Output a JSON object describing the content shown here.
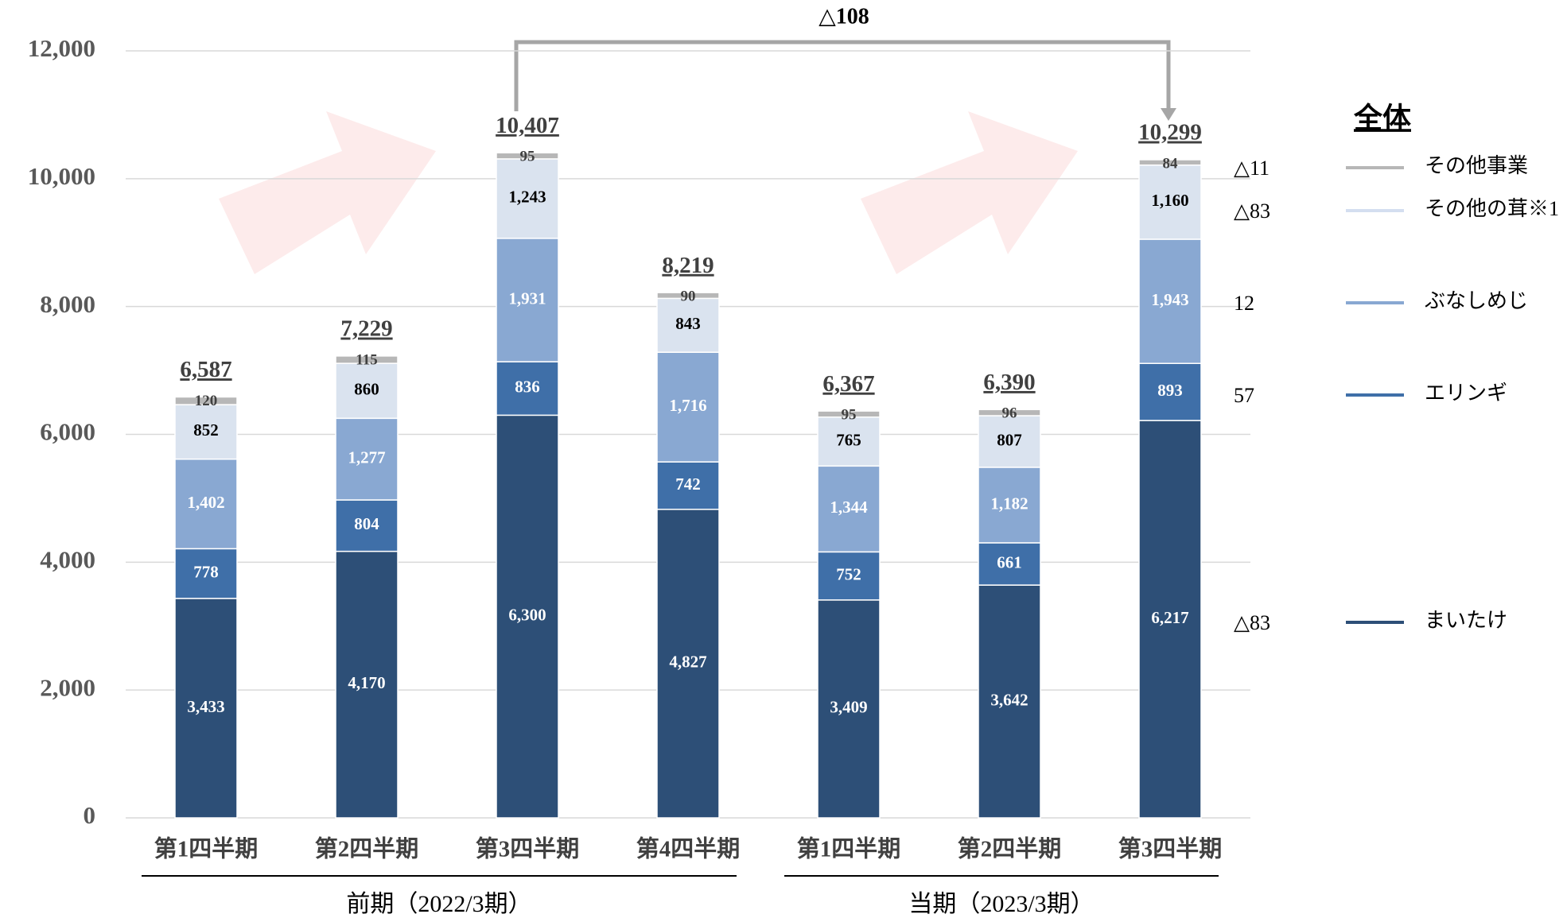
{
  "chart_data": {
    "type": "stacked_bar",
    "categories": [
      "第1四半期",
      "第2四半期",
      "第3四半期",
      "第4四半期",
      "第1四半期",
      "第2四半期",
      "第3四半期"
    ],
    "groups": [
      {
        "label": "前期（2022/3期）",
        "from": 0,
        "to": 3
      },
      {
        "label": "当期（2023/3期）",
        "from": 4,
        "to": 6
      }
    ],
    "series": [
      {
        "name": "まいたけ",
        "color": "#2d4f77",
        "label_color": "#ffffff",
        "change": "△83",
        "values": [
          3433,
          4170,
          6300,
          4827,
          3409,
          3642,
          6217
        ],
        "value_labels": [
          "3,433",
          "4,170",
          "6,300",
          "4,827",
          "3,409",
          "3,642",
          "6,217"
        ]
      },
      {
        "name": "エリンギ",
        "color": "#3f6fa8",
        "label_color": "#ffffff",
        "change": "57",
        "values": [
          778,
          804,
          836,
          742,
          752,
          661,
          893
        ],
        "value_labels": [
          "778",
          "804",
          "836",
          "742",
          "752",
          "661",
          "893"
        ]
      },
      {
        "name": "ぶなしめじ",
        "color": "#89a8d2",
        "label_color": "#ffffff",
        "change": "12",
        "values": [
          1402,
          1277,
          1931,
          1716,
          1344,
          1182,
          1943
        ],
        "value_labels": [
          "1,402",
          "1,277",
          "1,931",
          "1,716",
          "1,344",
          "1,182",
          "1,943"
        ]
      },
      {
        "name": "その他の茸※1",
        "color": "#dae3ef",
        "label_color": "#000000",
        "change": "△83",
        "values": [
          852,
          860,
          1243,
          843,
          765,
          807,
          1160
        ],
        "value_labels": [
          "852",
          "860",
          "1,243",
          "843",
          "765",
          "807",
          "1,160"
        ]
      },
      {
        "name": "その他事業",
        "color": "#b7b7b7",
        "label_color": "#404040",
        "change": "△11",
        "values": [
          120,
          115,
          95,
          90,
          95,
          96,
          84
        ],
        "value_labels": [
          "120",
          "115",
          "95",
          "90",
          "95",
          "96",
          "84"
        ]
      }
    ],
    "totals": [
      6587,
      7229,
      10407,
      8219,
      6367,
      6390,
      10299
    ],
    "total_labels": [
      "6,587",
      "7,229",
      "10,407",
      "8,219",
      "6,367",
      "6,390",
      "10,299"
    ],
    "legend_title": "全体",
    "annotation": "△108",
    "ylim": [
      0,
      12000
    ],
    "yticks": [
      0,
      {
        "value": 2000,
        "label": "2,000"
      },
      {
        "value": 4000,
        "label": "4,000"
      },
      {
        "value": 6000,
        "label": "6,000"
      },
      {
        "value": 8000,
        "label": "8,000"
      },
      {
        "value": 10000,
        "label": "10,000"
      },
      {
        "value": 12000,
        "label": "12,000"
      }
    ],
    "grid": true
  }
}
